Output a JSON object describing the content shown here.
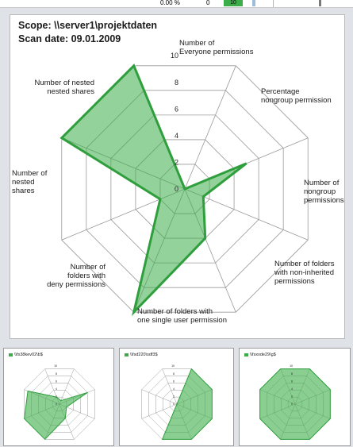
{
  "top_strip": {
    "percent": "0.00 %",
    "zero": "0",
    "value": "10"
  },
  "main": {
    "scope_label": "Scope: \\\\server1\\projektdaten",
    "scan_label": "Scan date:  09.01.2009"
  },
  "colors": {
    "fill": "#3cad49",
    "stroke": "#2f9e3c",
    "grid": "#9a9a9a"
  },
  "chart_data": [
    {
      "type": "radar",
      "title": "",
      "ylim": [
        0,
        10
      ],
      "ticks": [
        "0",
        "2",
        "4",
        "6",
        "8",
        "10"
      ],
      "categories": [
        "Number of Everyone permissions",
        "Percentage nongroup permission",
        "Number of nongroup permissions",
        "Number of folders with non-inherited permissions",
        "Number of folders with one single user permission",
        "Number of folders with deny permissions",
        "Number of nested shares",
        "Number of nested nested shares"
      ],
      "category_lines": [
        [
          "Number of",
          "Everyone permissions"
        ],
        [
          "Percentage",
          "nongroup permission"
        ],
        [
          "Number of",
          "nongroup",
          "permissions"
        ],
        [
          "Number of folders",
          "with non-inherited",
          "permissions"
        ],
        [
          "Number of folders with",
          "one single user permission"
        ],
        [
          "Number of",
          "folders with",
          "deny permissions"
        ],
        [
          "Number of",
          "nested",
          "shares"
        ],
        [
          "Number of nested",
          "nested shares"
        ]
      ],
      "values": [
        0,
        5,
        1.5,
        4,
        10,
        2,
        10,
        10
      ]
    },
    {
      "type": "radar",
      "title": "\\\\fs38kev02\\b$",
      "ylim": [
        0,
        10
      ],
      "ticks": [
        "0",
        "2",
        "4",
        "6",
        "8",
        "10"
      ],
      "values": [
        1,
        8,
        2,
        4,
        10,
        10,
        9,
        2
      ]
    },
    {
      "type": "radar",
      "title": "\\\\fsd220\\sdf3$",
      "ylim": [
        0,
        10
      ],
      "ticks": [
        "0",
        "2",
        "4",
        "6",
        "8",
        "10"
      ],
      "values": [
        10,
        10,
        10,
        10,
        10,
        0,
        0,
        0
      ]
    },
    {
      "type": "radar",
      "title": "\\\\fsxxde29\\g$",
      "ylim": [
        0,
        10
      ],
      "ticks": [
        "0",
        "2",
        "4",
        "6",
        "8",
        "10"
      ],
      "values": [
        10,
        10,
        10,
        10,
        10,
        10,
        10,
        10
      ]
    }
  ]
}
